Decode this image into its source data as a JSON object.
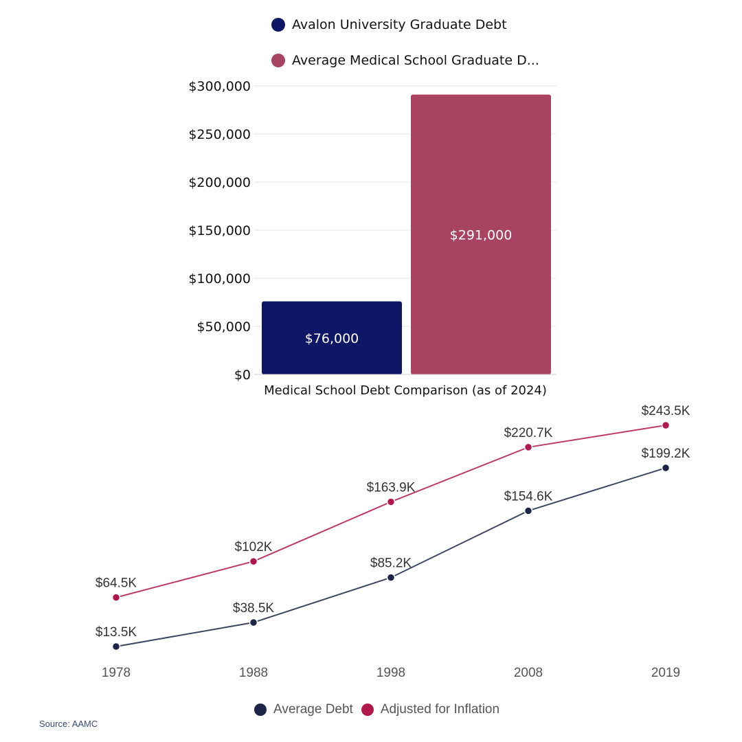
{
  "chart_data": [
    {
      "type": "bar",
      "xlabel": "Medical School Debt Comparison (as of 2024)",
      "ylim": [
        0,
        300000
      ],
      "yticks": [
        "$0",
        "$50,000",
        "$100,000",
        "$150,000",
        "$200,000",
        "$250,000",
        "$300,000"
      ],
      "grid": true,
      "legend_placement": "top",
      "series": [
        {
          "name": "Avalon University Graduate Debt",
          "value": 76000,
          "label": "$76,000",
          "color": "#0d1766"
        },
        {
          "name": "Average Medical School Graduate D...",
          "value": 291000,
          "label": "$291,000",
          "color": "#a8445f"
        }
      ]
    },
    {
      "type": "line",
      "categories": [
        "1978",
        "1988",
        "1998",
        "2008",
        "2019"
      ],
      "legend_placement": "bottom",
      "grid": false,
      "series": [
        {
          "name": "Average Debt",
          "color": "#1c2447",
          "values": [
            13.5,
            38.5,
            85.2,
            154.6,
            199.2
          ],
          "labels": [
            "$13.5K",
            "$38.5K",
            "$85.2K",
            "$154.6K",
            "$199.2K"
          ]
        },
        {
          "name": "Adjusted for Inflation",
          "color": "#b0174a",
          "values": [
            64.5,
            102,
            163.9,
            220.7,
            243.5
          ],
          "labels": [
            "$64.5K",
            "$102K",
            "$163.9K",
            "$220.7K",
            "$243.5K"
          ]
        }
      ],
      "source": "Source: AAMC"
    }
  ]
}
